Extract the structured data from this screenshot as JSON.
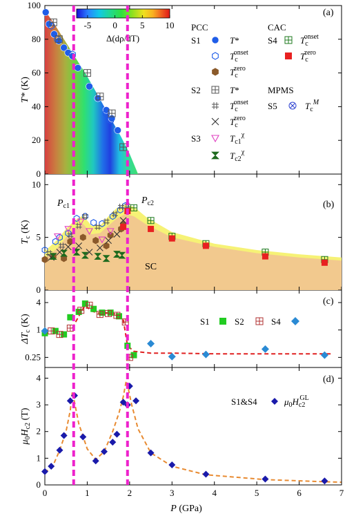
{
  "figure": {
    "xlabel_main": "P",
    "xlabel_unit": "(GPa)",
    "x_ticks": [
      "0",
      "1",
      "2",
      "3",
      "4",
      "5",
      "6",
      "7"
    ],
    "xlim": [
      0,
      7
    ],
    "pc1": 0.68,
    "pc2": 1.95
  },
  "chart_data": [
    {
      "panel_label": "(a)",
      "type": "scatter",
      "ylabel_main": "T*",
      "ylabel_unit": "(K)",
      "ylim": [
        0,
        100
      ],
      "y_ticks": [
        "0",
        "20",
        "40",
        "60",
        "80",
        "100"
      ],
      "colorbar": {
        "label": "Δ(dρ/dT)",
        "range": [
          -7,
          10
        ],
        "ticks": [
          "-5",
          "0",
          "5",
          "10"
        ],
        "tick_values": [
          -5,
          0,
          5,
          10
        ],
        "colors": [
          "#1a10d8",
          "#2a7fff",
          "#10c8e8",
          "#20d890",
          "#30e040",
          "#90e020",
          "#f0e020",
          "#f8b020",
          "#f06020",
          "#e01818"
        ]
      },
      "boundary_curve": {
        "x": [
          0,
          0.2,
          0.4,
          0.6,
          0.8,
          1.0,
          1.2,
          1.4,
          1.6,
          1.8,
          2.0,
          2.1,
          2.2
        ],
        "y": [
          97,
          90,
          82,
          74,
          66,
          58,
          49,
          40,
          31,
          22,
          12,
          6,
          0
        ]
      },
      "series": [
        {
          "name": "S1 T*",
          "marker": "filled-circle",
          "color": "#1f5de8",
          "x": [
            0.02,
            0.1,
            0.22,
            0.33,
            0.45,
            0.55,
            0.65,
            0.78,
            1.05,
            1.25,
            1.45,
            1.58,
            1.72
          ],
          "y": [
            96,
            89,
            83,
            79,
            75,
            72,
            70,
            63,
            52,
            45,
            38,
            33,
            26
          ]
        },
        {
          "name": "S1 Tc onset",
          "marker": "open-hexagon",
          "color": "#1f5de8",
          "x": [
            0.15,
            0.3,
            0.65,
            1.45,
            1.55
          ],
          "y": [
            88,
            80,
            71,
            36,
            32
          ]
        },
        {
          "name": "S2 T*",
          "marker": "boxed-plus",
          "color": "#555555",
          "x": [
            0.2,
            0.33,
            1.0,
            1.3,
            1.58,
            1.85
          ],
          "y": [
            90,
            80,
            60,
            46,
            36,
            16
          ]
        }
      ]
    },
    {
      "panel_label": "(b)",
      "type": "scatter",
      "ylabel_main": "T",
      "ylabel_sub": "c",
      "ylabel_unit": "(K)",
      "ylim": [
        0,
        11
      ],
      "y_ticks": [
        "0",
        "5",
        "10"
      ],
      "region_label": "SC",
      "pc1_label_main": "P",
      "pc1_label_sub": "c1",
      "pc2_label_main": "P",
      "pc2_label_sub": "c2",
      "sc_onset_curve": {
        "x": [
          0,
          0.3,
          0.5,
          0.7,
          0.9,
          1.1,
          1.3,
          1.5,
          1.7,
          1.9,
          2.1,
          2.4,
          3.0,
          4.0,
          5.0,
          6.0,
          7.0
        ],
        "y": [
          3.7,
          4.8,
          5.8,
          6.6,
          7.1,
          6.1,
          6.1,
          7.0,
          7.8,
          8.1,
          7.9,
          6.9,
          5.5,
          4.4,
          3.8,
          3.4,
          3.1
        ]
      },
      "sc_zero_curve": {
        "x": [
          0,
          0.3,
          0.5,
          0.7,
          0.9,
          1.1,
          1.3,
          1.5,
          1.7,
          1.9,
          2.1,
          2.4,
          3.0,
          4.0,
          5.0,
          6.0,
          7.0
        ],
        "y": [
          3.0,
          4.0,
          5.0,
          5.8,
          6.3,
          5.3,
          5.4,
          6.1,
          6.8,
          7.2,
          7.0,
          6.2,
          5.0,
          4.1,
          3.5,
          3.1,
          2.8
        ]
      },
      "series": [
        {
          "name": "S1 Tc onset",
          "marker": "open-hexagon",
          "color": "#1f5de8",
          "x": [
            0.0,
            0.25,
            0.35,
            0.55,
            0.75,
            0.95,
            1.15,
            1.35,
            1.6,
            1.78,
            1.9
          ],
          "y": [
            3.8,
            4.6,
            5.0,
            5.4,
            6.8,
            7.0,
            6.4,
            6.3,
            7.0,
            7.6,
            8.0
          ]
        },
        {
          "name": "S1 Tc zero",
          "marker": "filled-hexagon",
          "color": "#8b5a2b",
          "x": [
            0.0,
            0.2,
            0.45,
            0.6,
            0.9,
            1.2,
            1.45,
            1.55,
            1.8,
            1.85
          ],
          "y": [
            2.9,
            3.2,
            3.0,
            4.6,
            5.0,
            4.7,
            4.2,
            5.2,
            5.8,
            6.2
          ]
        },
        {
          "name": "S2 Tc onset",
          "marker": "hash",
          "color": "#555555",
          "x": [
            0.1,
            0.4,
            0.6,
            0.8,
            0.95,
            1.25,
            1.45,
            1.65,
            1.8,
            1.95
          ],
          "y": [
            3.5,
            4.2,
            5.2,
            6.1,
            7.0,
            6.0,
            6.5,
            7.2,
            7.9,
            8.0
          ]
        },
        {
          "name": "S2 Tc zero",
          "marker": "x",
          "color": "#333333",
          "x": [
            0.15,
            0.35,
            0.55,
            0.8,
            1.05,
            1.3,
            1.5,
            1.7,
            1.85
          ],
          "y": [
            3.1,
            3.6,
            4.1,
            4.2,
            3.6,
            4.0,
            4.7,
            5.3,
            6.6
          ]
        },
        {
          "name": "S3 Tc1",
          "marker": "open-triangle-down",
          "color": "#e040c0",
          "x": [
            0.3,
            0.55,
            0.85,
            1.05,
            1.35,
            1.55
          ],
          "y": [
            5.1,
            5.8,
            6.5,
            5.6,
            4.8,
            5.6
          ]
        },
        {
          "name": "S3 Tc2",
          "marker": "bowtie",
          "color": "#1e6a1e",
          "x": [
            0.2,
            0.45,
            0.75,
            0.95,
            1.25,
            1.45,
            1.7,
            1.82
          ],
          "y": [
            3.2,
            3.5,
            3.6,
            3.3,
            3.2,
            3.0,
            3.4,
            3.3
          ]
        },
        {
          "name": "S4 Tc onset",
          "marker": "boxed-plus",
          "color": "#1e7a1e",
          "x": [
            2.1,
            2.5,
            3.0,
            3.8,
            5.2,
            6.6
          ],
          "y": [
            7.8,
            6.6,
            5.1,
            4.4,
            3.6,
            2.9
          ]
        },
        {
          "name": "S4 Tc zero",
          "marker": "filled-square",
          "color": "#e82020",
          "x": [
            1.85,
            1.95,
            2.5,
            3.0,
            3.8,
            5.2,
            6.6
          ],
          "y": [
            6.0,
            7.5,
            5.8,
            4.9,
            4.2,
            3.2,
            2.6
          ]
        }
      ]
    },
    {
      "panel_label": "(c)",
      "type": "scatter",
      "ylabel_main": "ΔT",
      "ylabel_sub": "c",
      "ylabel_unit": "(K)",
      "yscale": "log",
      "ylim": [
        0.15,
        7.5
      ],
      "y_ticks": [
        "0.25",
        "1",
        "4"
      ],
      "y_tick_values": [
        0.25,
        1,
        4
      ],
      "legend": [
        "S1",
        "S2",
        "S4"
      ],
      "guide": {
        "x": [
          0.65,
          0.8,
          0.95,
          1.1,
          1.3,
          1.5,
          1.7,
          1.85,
          1.95,
          2.1,
          2.5,
          3.0,
          4.0,
          5.0,
          6.0,
          6.8
        ],
        "y": [
          1.1,
          2.0,
          3.5,
          2.6,
          2.3,
          2.4,
          2.2,
          1.7,
          0.45,
          0.34,
          0.31,
          0.31,
          0.3,
          0.3,
          0.3,
          0.3
        ]
      },
      "series": [
        {
          "name": "S1",
          "marker": "filled-square",
          "color": "#22cc22",
          "x": [
            0.0,
            0.25,
            0.45,
            0.6,
            0.8,
            0.95,
            1.15,
            1.35,
            1.55,
            1.75,
            1.95,
            2.1
          ],
          "y": [
            0.85,
            0.95,
            0.8,
            1.9,
            2.5,
            3.8,
            2.9,
            2.4,
            2.4,
            2.0,
            0.45,
            0.28
          ]
        },
        {
          "name": "S2",
          "marker": "boxed-plus",
          "color": "#b03030",
          "x": [
            0.15,
            0.35,
            0.6,
            0.85,
            1.05,
            1.3,
            1.5,
            1.7,
            1.9,
            2.0
          ],
          "y": [
            0.95,
            0.8,
            1.1,
            2.7,
            3.5,
            2.2,
            2.3,
            2.1,
            1.5,
            0.25
          ]
        },
        {
          "name": "S4",
          "marker": "diamond",
          "color": "#2a8ad4",
          "x": [
            0.0,
            2.5,
            3.0,
            3.8,
            5.2,
            6.6
          ],
          "y": [
            0.95,
            0.5,
            0.26,
            0.29,
            0.38,
            0.28
          ]
        }
      ]
    },
    {
      "panel_label": "(d)",
      "type": "scatter",
      "ylabel_main": "μ",
      "ylabel_sub": "0",
      "ylabel_main2": "H",
      "ylabel_sub2": "c2",
      "ylabel_unit": "(T)",
      "ylim": [
        0,
        4.4
      ],
      "y_ticks": [
        "0",
        "1",
        "2",
        "3",
        "4"
      ],
      "legend_sample": "S1&S4",
      "legend_main": "μ",
      "legend_sub": "0",
      "legend_main2": "H",
      "legend_sub2": "c2",
      "legend_sup": "GL",
      "guide": {
        "x": [
          0,
          0.2,
          0.35,
          0.5,
          0.6,
          0.65,
          0.7,
          0.8,
          1.0,
          1.2,
          1.4,
          1.6,
          1.75,
          1.85,
          1.92,
          1.97,
          2.05,
          2.2,
          2.5,
          3.0,
          3.8,
          5.2,
          6.6,
          7.0
        ],
        "y": [
          0.45,
          0.75,
          1.3,
          2.0,
          2.8,
          3.5,
          3.1,
          2.3,
          1.35,
          0.95,
          1.25,
          2.0,
          2.7,
          3.3,
          3.9,
          3.6,
          3.0,
          2.1,
          1.2,
          0.7,
          0.38,
          0.2,
          0.12,
          0.1
        ]
      },
      "series": [
        {
          "name": "S1&S4 μ0Hc2 GL",
          "marker": "diamond",
          "color": "#1a1aaa",
          "x": [
            0.0,
            0.15,
            0.35,
            0.45,
            0.6,
            0.7,
            0.9,
            1.2,
            1.4,
            1.6,
            1.7,
            1.85,
            1.95,
            2.0,
            2.15,
            2.5,
            3.0,
            3.8,
            5.2,
            6.6
          ],
          "y": [
            0.5,
            0.7,
            1.3,
            1.85,
            3.15,
            3.35,
            1.8,
            0.9,
            1.25,
            1.6,
            1.9,
            3.1,
            3.0,
            3.7,
            3.15,
            1.2,
            0.75,
            0.4,
            0.22,
            0.15
          ]
        }
      ]
    }
  ],
  "legend_a": {
    "pcc_title": "PCC",
    "cac_title": "CAC",
    "mpms_title": "MPMS",
    "s1": "S1",
    "s2": "S2",
    "s3": "S3",
    "s4": "S4",
    "s5": "S5",
    "tstar_main": "T",
    "tstar_suffix": "*",
    "tc_main": "T",
    "tc_sub": "c",
    "onset_sup": "onset",
    "zero_sup": "zero",
    "tc1_sub": "c1",
    "tc2_sub": "c2",
    "chi_sup": "χ",
    "m_sup": "M"
  },
  "legend_c": {
    "s1": "S1",
    "s2": "S2",
    "s4": "S4"
  }
}
